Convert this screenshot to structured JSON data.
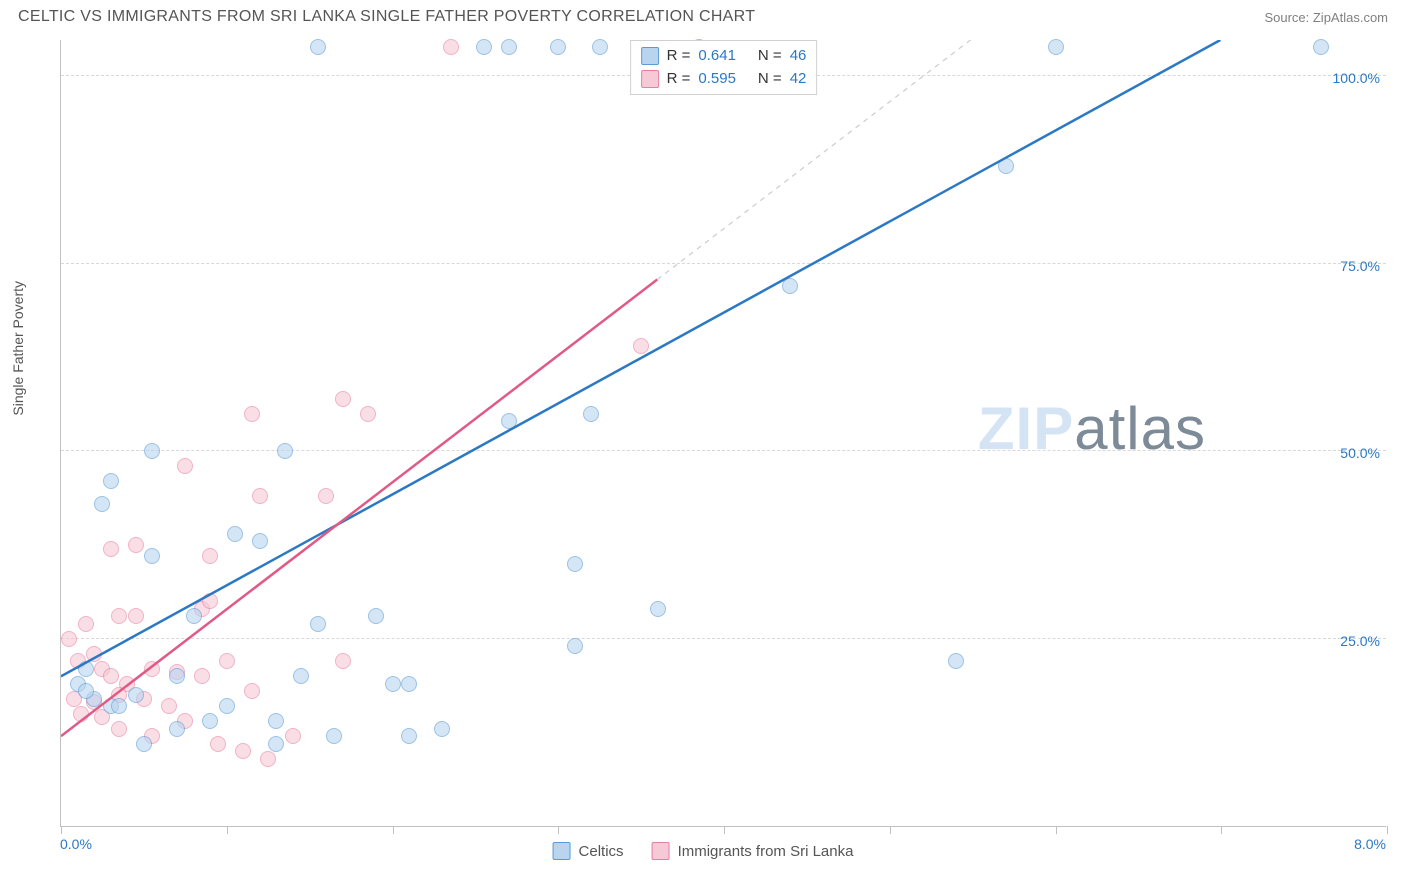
{
  "header": {
    "title": "CELTIC VS IMMIGRANTS FROM SRI LANKA SINGLE FATHER POVERTY CORRELATION CHART",
    "source": "Source: ZipAtlas.com"
  },
  "chart": {
    "type": "scatter",
    "ylabel": "Single Father Poverty",
    "x_domain": [
      0,
      8
    ],
    "y_domain": [
      0,
      105
    ],
    "x_ticks": [
      0,
      1,
      2,
      3,
      4,
      5,
      6,
      7,
      8
    ],
    "x_tick_labels": {
      "0": "0.0%",
      "8": "8.0%"
    },
    "y_ticks": [
      25,
      50,
      75,
      100
    ],
    "y_tick_labels": {
      "25": "25.0%",
      "50": "50.0%",
      "75": "75.0%",
      "100": "100.0%"
    },
    "background_color": "#ffffff",
    "grid_color": "#d8d8d8",
    "axis_color": "#c0c0c0",
    "tick_label_color": "#2b78c4",
    "marker_radius": 8,
    "marker_opacity": 0.6,
    "series": {
      "celtics": {
        "label": "Celtics",
        "fill": "#b9d4ef",
        "stroke": "#5a9bd5",
        "trend": {
          "color": "#2b78c4",
          "width": 2.5,
          "x1": 0,
          "y1": 20,
          "x2": 7.0,
          "y2": 105,
          "dash_extend": false
        },
        "R": "0.641",
        "N": "46",
        "points": [
          [
            1.55,
            104
          ],
          [
            2.55,
            104
          ],
          [
            2.7,
            104
          ],
          [
            3.0,
            104
          ],
          [
            3.25,
            104
          ],
          [
            3.85,
            104
          ],
          [
            6.0,
            104
          ],
          [
            7.6,
            104
          ],
          [
            5.7,
            88
          ],
          [
            4.4,
            72
          ],
          [
            3.2,
            55
          ],
          [
            2.7,
            54
          ],
          [
            1.35,
            50
          ],
          [
            0.55,
            50
          ],
          [
            0.3,
            46
          ],
          [
            0.25,
            43
          ],
          [
            1.05,
            39
          ],
          [
            1.2,
            38
          ],
          [
            3.1,
            35
          ],
          [
            0.55,
            36
          ],
          [
            0.8,
            28
          ],
          [
            1.9,
            28
          ],
          [
            1.55,
            27
          ],
          [
            3.6,
            29
          ],
          [
            5.4,
            22
          ],
          [
            3.1,
            24
          ],
          [
            0.15,
            21
          ],
          [
            0.1,
            19
          ],
          [
            0.2,
            17
          ],
          [
            0.3,
            16
          ],
          [
            0.45,
            17.5
          ],
          [
            0.7,
            20
          ],
          [
            1.0,
            16
          ],
          [
            1.3,
            14
          ],
          [
            1.45,
            20
          ],
          [
            2.0,
            19
          ],
          [
            2.1,
            19
          ],
          [
            2.3,
            13
          ],
          [
            2.1,
            12
          ],
          [
            1.65,
            12
          ],
          [
            1.3,
            11
          ],
          [
            0.9,
            14
          ],
          [
            0.7,
            13
          ],
          [
            0.5,
            11
          ],
          [
            0.35,
            16
          ],
          [
            0.15,
            18
          ]
        ]
      },
      "srilanka": {
        "label": "Immigrants from Sri Lanka",
        "fill": "#f6c9d6",
        "stroke": "#e87fa3",
        "trend": {
          "color": "#e05a85",
          "width": 2.5,
          "x1": 0,
          "y1": 12,
          "x2": 3.6,
          "y2": 73,
          "dash_extend": true,
          "dash_color": "#cccccc",
          "x2_ext": 6.2,
          "y2_ext": 117
        },
        "R": "0.595",
        "N": "42",
        "points": [
          [
            2.35,
            104
          ],
          [
            3.5,
            64
          ],
          [
            1.7,
            57
          ],
          [
            1.15,
            55
          ],
          [
            1.85,
            55
          ],
          [
            0.75,
            48
          ],
          [
            1.2,
            44
          ],
          [
            1.6,
            44
          ],
          [
            0.45,
            37.5
          ],
          [
            0.3,
            37
          ],
          [
            0.9,
            36
          ],
          [
            0.85,
            29
          ],
          [
            0.9,
            30
          ],
          [
            0.35,
            28
          ],
          [
            0.15,
            27
          ],
          [
            0.45,
            28
          ],
          [
            0.05,
            25
          ],
          [
            0.1,
            22
          ],
          [
            0.2,
            23
          ],
          [
            0.25,
            21
          ],
          [
            0.3,
            20
          ],
          [
            0.4,
            19
          ],
          [
            0.55,
            21
          ],
          [
            0.7,
            20.5
          ],
          [
            0.85,
            20
          ],
          [
            1.0,
            22
          ],
          [
            1.7,
            22
          ],
          [
            1.15,
            18
          ],
          [
            0.08,
            17
          ],
          [
            0.2,
            16.5
          ],
          [
            0.35,
            17.5
          ],
          [
            0.5,
            17
          ],
          [
            0.65,
            16
          ],
          [
            0.75,
            14
          ],
          [
            0.55,
            12
          ],
          [
            0.95,
            11
          ],
          [
            1.1,
            10
          ],
          [
            1.25,
            9
          ],
          [
            1.4,
            12
          ],
          [
            0.35,
            13
          ],
          [
            0.25,
            14.5
          ],
          [
            0.12,
            15
          ]
        ]
      }
    },
    "legend_top": [
      {
        "swatch_fill": "#b9d4ef",
        "swatch_stroke": "#5a9bd5",
        "R_label": "R =",
        "R": "0.641",
        "N_label": "N =",
        "N": "46"
      },
      {
        "swatch_fill": "#f6c9d6",
        "swatch_stroke": "#e87fa3",
        "R_label": "R =",
        "R": "0.595",
        "N_label": "N =",
        "N": "42"
      }
    ],
    "watermark": {
      "text_light": "ZIP",
      "text_dark": "atlas",
      "color_light": "#d4e4f4",
      "color_dark": "#7d8a97"
    }
  }
}
